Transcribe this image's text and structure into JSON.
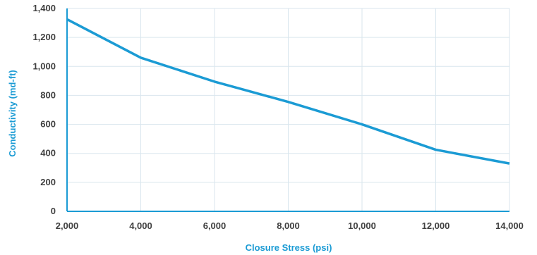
{
  "chart_data": {
    "type": "line",
    "title": "",
    "xlabel": "Closure Stress (psi)",
    "ylabel": "Conductivity (md-ft)",
    "x": [
      2000,
      4000,
      6000,
      8000,
      10000,
      12000,
      14000
    ],
    "series": [
      {
        "values": [
          1325,
          1060,
          895,
          755,
          600,
          425,
          330
        ]
      }
    ],
    "xlim": [
      2000,
      14000
    ],
    "ylim": [
      0,
      1400
    ],
    "x_ticks": [
      2000,
      4000,
      6000,
      8000,
      10000,
      12000,
      14000
    ],
    "x_tick_labels": [
      "2,000",
      "4,000",
      "6,000",
      "8,000",
      "10,000",
      "12,000",
      "14,000"
    ],
    "y_ticks": [
      0,
      200,
      400,
      600,
      800,
      1000,
      1200,
      1400
    ],
    "y_tick_labels": [
      "0",
      "200",
      "400",
      "600",
      "800",
      "1,000",
      "1,200",
      "1,400"
    ],
    "grid": true,
    "legend": "none"
  },
  "colors": {
    "line": "#1b9bd4",
    "axis": "#1b9bd4",
    "grid": "#d9e6ee",
    "axis_title": "#1b9bd4",
    "tick_label": "#404040"
  }
}
